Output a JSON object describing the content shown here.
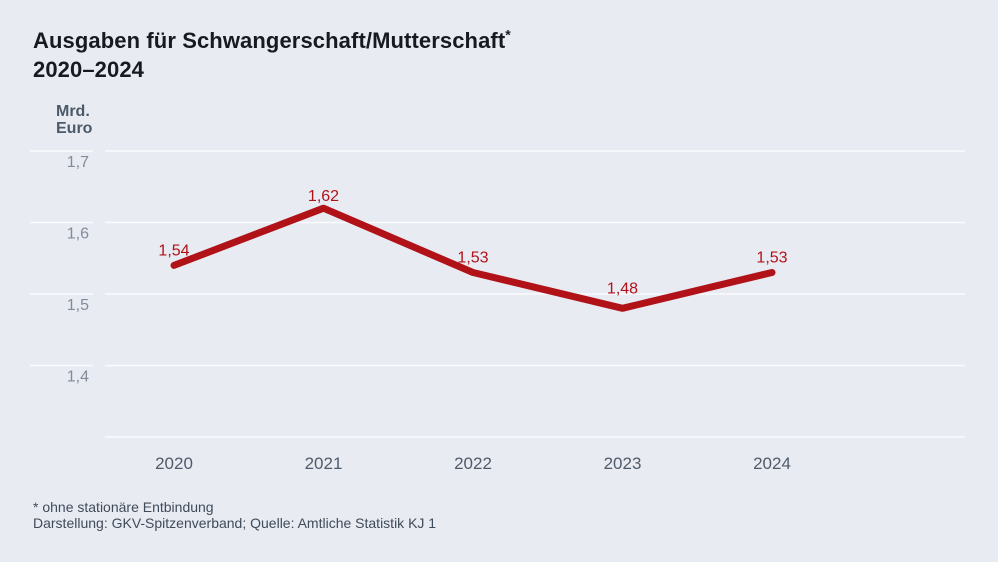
{
  "header": {
    "title_line1": "Ausgaben für Schwangerschaft/Mutterschaft",
    "title_asterisk": "*",
    "title_line2": "2020–2024"
  },
  "chart_data": {
    "type": "line",
    "title": "Ausgaben für Schwangerschaft/Mutterschaft* 2020–2024",
    "unit_label_line1": "Mrd.",
    "unit_label_line2": "Euro",
    "categories": [
      "2020",
      "2021",
      "2022",
      "2023",
      "2024"
    ],
    "series": [
      {
        "name": "Ausgaben für Schwangerschaft/Mutterschaft",
        "values": [
          1.54,
          1.62,
          1.53,
          1.48,
          1.53
        ]
      }
    ],
    "value_labels": [
      "1,54",
      "1,62",
      "1,53",
      "1,48",
      "1,53"
    ],
    "y_ticks": [
      {
        "value": 1.7,
        "label": "1,7"
      },
      {
        "value": 1.6,
        "label": "1,6"
      },
      {
        "value": 1.5,
        "label": "1,5"
      },
      {
        "value": 1.4,
        "label": "1,4"
      }
    ],
    "ylim": [
      1.3,
      1.7
    ],
    "grid": true,
    "legend_position": "none",
    "colors": {
      "background": "#e9ebf3",
      "gridline": "#fafbfd",
      "line": "#b01218",
      "value_label": "#b01218",
      "y_tick_label": "#818c9b",
      "x_tick_label": "#505b69",
      "title": "#171b20",
      "unit_label": "#4b5a68",
      "footer": "#3f4b58"
    }
  },
  "footer": {
    "note": "* ohne stationäre Entbindung",
    "source": "Darstellung: GKV-Spitzenverband; Quelle: Amtliche Statistik KJ 1"
  }
}
